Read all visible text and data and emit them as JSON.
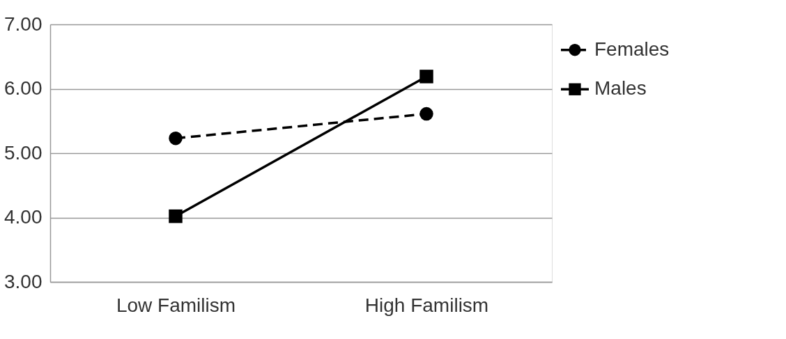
{
  "chart_data": {
    "type": "line",
    "categories": [
      "Low Familism",
      "High Familism"
    ],
    "series": [
      {
        "name": "Females",
        "color": "#000000",
        "values": [
          5.23,
          5.61
        ],
        "marker": "circle",
        "line_style": "dashed"
      },
      {
        "name": "Males",
        "color": "#000000",
        "values": [
          4.02,
          6.19
        ],
        "marker": "square",
        "line_style": "solid"
      }
    ],
    "ylim": [
      3,
      7
    ],
    "yticks": [
      {
        "value": 3,
        "label": "3.00"
      },
      {
        "value": 4,
        "label": "4.00"
      },
      {
        "value": 5,
        "label": "5.00"
      },
      {
        "value": 6,
        "label": "6.00"
      },
      {
        "value": 7,
        "label": "7.00"
      }
    ],
    "grid": "y",
    "legend": "right"
  }
}
